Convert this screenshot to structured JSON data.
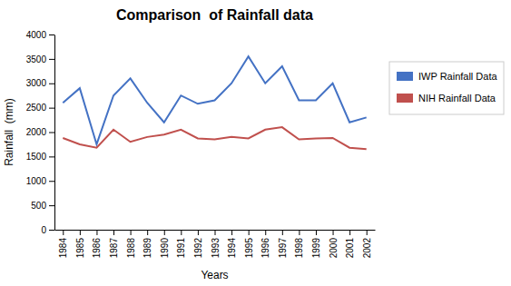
{
  "chart_data": {
    "type": "line",
    "title": "Comparison  of Rainfall data",
    "xlabel": "Years",
    "ylabel": "Rainfall  (mm)",
    "x": [
      1984,
      1985,
      1986,
      1987,
      1988,
      1989,
      1990,
      1991,
      1992,
      1993,
      1994,
      1995,
      1996,
      1997,
      1998,
      1999,
      2000,
      2001,
      2002
    ],
    "series": [
      {
        "name": "IWP Rainfall Data",
        "color": "#4472C4",
        "values": [
          2600,
          2900,
          1750,
          2750,
          3100,
          2600,
          2200,
          2750,
          2580,
          2650,
          3000,
          3550,
          3000,
          3350,
          2650,
          2650,
          3000,
          2200,
          2300
        ]
      },
      {
        "name": "NIH Rainfall Data",
        "color": "#C0504D",
        "values": [
          1880,
          1750,
          1680,
          2050,
          1800,
          1900,
          1950,
          2050,
          1870,
          1850,
          1900,
          1870,
          2050,
          2100,
          1850,
          1870,
          1880,
          1680,
          1650
        ]
      }
    ],
    "xlim": [
      1983.5,
      2002.5
    ],
    "xticks": [
      1984,
      1985,
      1986,
      1987,
      1988,
      1989,
      1990,
      1991,
      1992,
      1993,
      1994,
      1995,
      1996,
      1997,
      1998,
      1999,
      2000,
      2001,
      2002
    ],
    "ylim": [
      0,
      4000
    ],
    "yticks": [
      0,
      500,
      1000,
      1500,
      2000,
      2500,
      3000,
      3500,
      4000
    ],
    "grid": false,
    "legend": "right"
  }
}
